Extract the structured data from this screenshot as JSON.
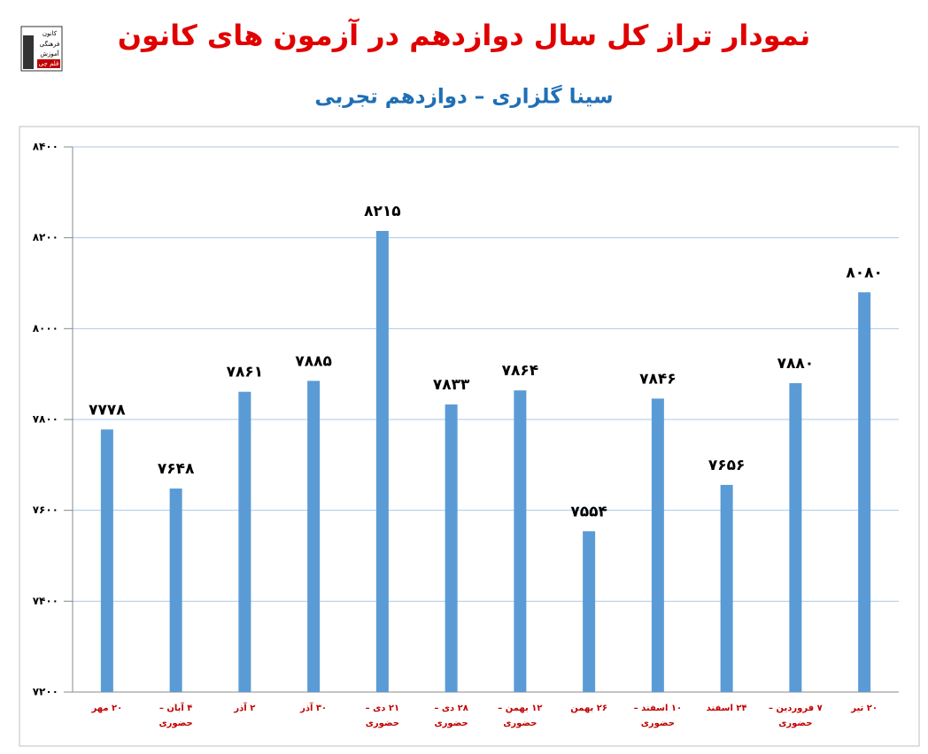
{
  "chart_data": {
    "type": "bar",
    "title": "نمودار تراز کل سال دوازدهم در آزمون های کانون",
    "subtitle": "سینا گلزاری – دوازدهم تجربی",
    "logo": [
      "کانون",
      "فرهنگی",
      "آموزش",
      "قلم چی"
    ],
    "categories": [
      "۲۰ مهر",
      "۴ آبان – حضوری",
      "۲ آذر",
      "۳۰ آذر",
      "۲۱ دی – حضوری",
      "۲۸ دی – حضوری",
      "۱۲ بهمن – حضوری",
      "۲۶ بهمن",
      "۱۰ اسفند – حضوری",
      "۲۴ اسفند",
      "۷ فروردین – حضوری",
      "۲۰ تیر"
    ],
    "values": [
      7778,
      7648,
      7861,
      7885,
      8215,
      7833,
      7864,
      7554,
      7846,
      7656,
      7880,
      8080
    ],
    "value_labels": [
      "۷۷۷۸",
      "۷۶۴۸",
      "۷۸۶۱",
      "۷۸۸۵",
      "۸۲۱۵",
      "۷۸۳۳",
      "۷۸۶۴",
      "۷۵۵۴",
      "۷۸۴۶",
      "۷۶۵۶",
      "۷۸۸۰",
      "۸۰۸۰"
    ],
    "color": "#5b9bd5",
    "ylim": [
      7200,
      8400
    ],
    "yticks": [
      {
        "value": 7200,
        "label": "۷۲۰۰"
      },
      {
        "value": 7400,
        "label": "۷۴۰۰"
      },
      {
        "value": 7600,
        "label": "۷۶۰۰"
      },
      {
        "value": 7800,
        "label": "۷۸۰۰"
      },
      {
        "value": 8000,
        "label": "۸۰۰۰"
      },
      {
        "value": 8200,
        "label": "۸۲۰۰"
      },
      {
        "value": 8400,
        "label": "۸۴۰۰"
      }
    ],
    "grid": true
  }
}
